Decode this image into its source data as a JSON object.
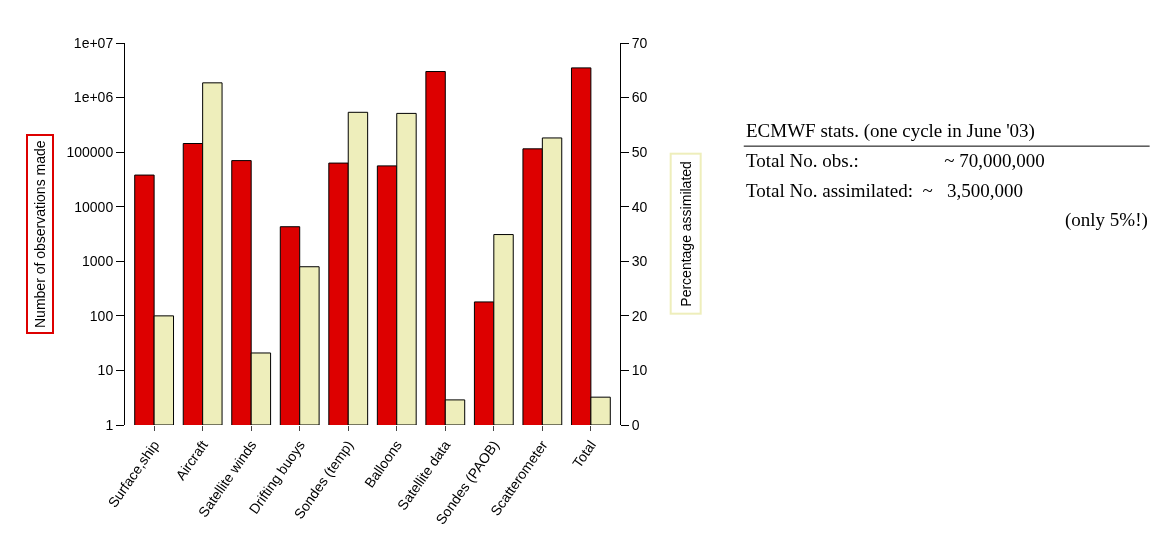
{
  "chart_data": {
    "type": "bar",
    "categories": [
      "Surface,ship",
      "Aircraft",
      "Satellite winds",
      "Drifting buoys",
      "Sondes (temp)",
      "Balloons",
      "Satellite data",
      "Sondes (PAOB)",
      "Scatterometer",
      "Total"
    ],
    "series": [
      {
        "color": "#dd0000",
        "values": [
          38000,
          144000,
          70000,
          4300,
          63000,
          56000,
          3000000,
          180,
          115000,
          3500000
        ]
      },
      {
        "color": "#eeeebb",
        "axis": "y2",
        "values": [
          20,
          62.7,
          13.2,
          29,
          57.3,
          57.1,
          4.6,
          34.9,
          52.6,
          5.1
        ]
      }
    ],
    "log": "y",
    "ylim": [
      1,
      10000000
    ],
    "yticks": [
      1,
      10,
      100,
      1000,
      10000,
      100000,
      {
        "value": 1000000,
        "label": "1e+06"
      },
      {
        "value": 10000000,
        "label": "1e+07"
      }
    ],
    "y2lim": [
      0,
      70
    ],
    "y2ticks": [
      0,
      10,
      20,
      30,
      40,
      50,
      60,
      70
    ],
    "ylabel": "Number of observations made",
    "y2label": "Percentage assimilated",
    "annotations": [
      "ECMWF stats. (one cycle in June '03)",
      "Total No. obs.:                  ~ 70,000,000",
      "Total No. assimilated:  ~   3,500,000",
      "(only 5%!)"
    ]
  }
}
